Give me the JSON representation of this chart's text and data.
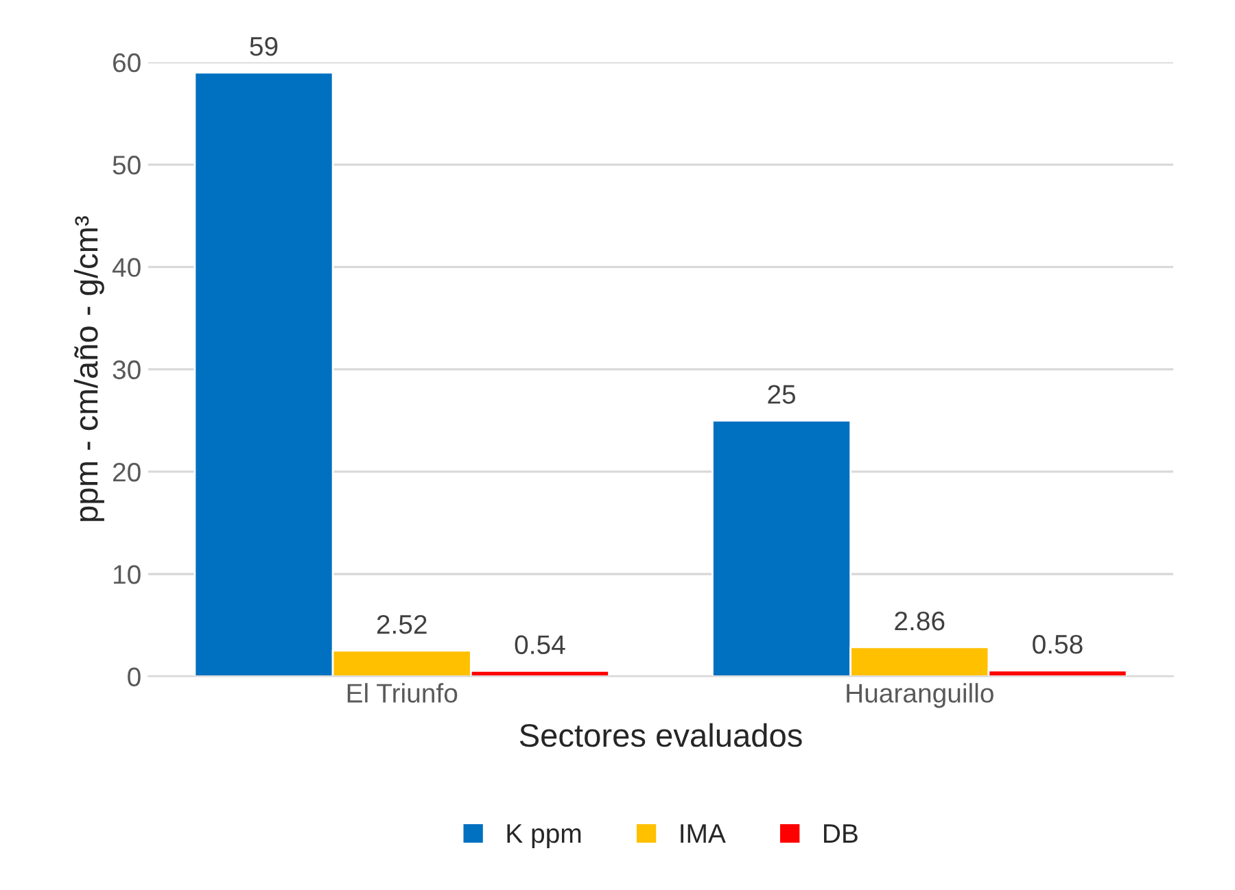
{
  "chart_data": {
    "type": "bar",
    "xlabel": "Sectores evaluados",
    "ylabel": "ppm - cm/año - g/cm³",
    "categories": [
      "El Triunfo",
      "Huaranguillo"
    ],
    "series": [
      {
        "name": "K ppm",
        "color": "#0070c0",
        "values": [
          59,
          25
        ]
      },
      {
        "name": "IMA",
        "color": "#ffc000",
        "values": [
          2.52,
          2.86
        ]
      },
      {
        "name": "DB",
        "color": "#ff0000",
        "values": [
          0.54,
          0.58
        ]
      }
    ],
    "ylim": [
      0,
      60
    ],
    "yticks": [
      0,
      10,
      20,
      30,
      40,
      50,
      60
    ],
    "grid": "y",
    "legend": "bottom",
    "data_labels": true
  }
}
